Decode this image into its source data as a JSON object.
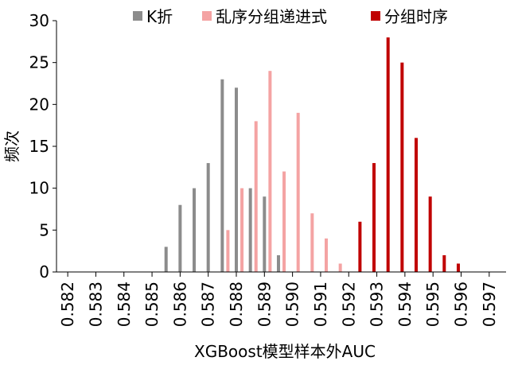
{
  "chart_data": {
    "type": "bar",
    "title": "",
    "xlabel": "XGBoost模型样本外AUC",
    "ylabel": "频次",
    "x": [
      0.582,
      0.583,
      0.584,
      0.585,
      0.586,
      0.587,
      0.588,
      0.589,
      0.59,
      0.591,
      0.592,
      0.593,
      0.594,
      0.595,
      0.596,
      0.597
    ],
    "x_tick_labels": [
      "0.582",
      "0.583",
      "0.584",
      "0.585",
      "0.586",
      "0.587",
      "0.588",
      "0.589",
      "0.590",
      "0.591",
      "0.592",
      "0.593",
      "0.594",
      "0.595",
      "0.596",
      "0.597"
    ],
    "y_tick_labels": [
      "0",
      "5",
      "10",
      "15",
      "20",
      "25",
      "30"
    ],
    "ylim": [
      0,
      30
    ],
    "grid": false,
    "legend_position": "top",
    "series": [
      {
        "name": "K折",
        "color": "#8c8c8c",
        "points": [
          [
            0.5855,
            3
          ],
          [
            0.586,
            8
          ],
          [
            0.5865,
            10
          ],
          [
            0.587,
            13
          ],
          [
            0.5875,
            23
          ],
          [
            0.588,
            22
          ],
          [
            0.5885,
            10
          ],
          [
            0.589,
            9
          ],
          [
            0.5895,
            2
          ]
        ]
      },
      {
        "name": "乱序分组递进式",
        "color": "#f4a3a3",
        "points": [
          [
            0.5877,
            5
          ],
          [
            0.5882,
            10
          ],
          [
            0.5887,
            18
          ],
          [
            0.5892,
            24
          ],
          [
            0.5897,
            12
          ],
          [
            0.5902,
            19
          ],
          [
            0.5907,
            7
          ],
          [
            0.5912,
            4
          ],
          [
            0.5917,
            1
          ]
        ]
      },
      {
        "name": "分组时序",
        "color": "#c00000",
        "points": [
          [
            0.5924,
            6
          ],
          [
            0.5929,
            13
          ],
          [
            0.5934,
            28
          ],
          [
            0.5939,
            25
          ],
          [
            0.5944,
            16
          ],
          [
            0.5949,
            9
          ],
          [
            0.5954,
            2
          ],
          [
            0.5959,
            1
          ]
        ]
      }
    ]
  }
}
